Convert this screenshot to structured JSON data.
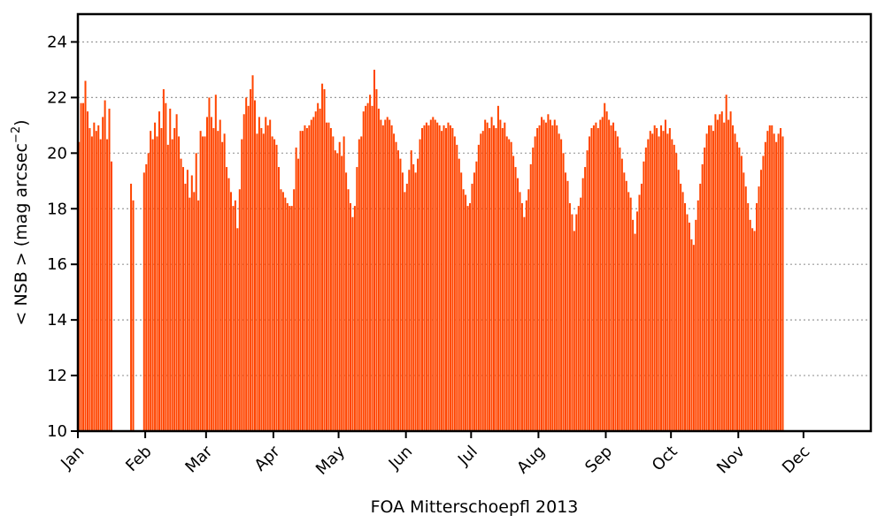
{
  "chart_data": {
    "type": "bar",
    "title": "",
    "xlabel": "FOA Mitterschoepfl 2013",
    "ylabel": "< NSB >  (mag arcsec⁻²)",
    "ylim": [
      10,
      25
    ],
    "xlim": [
      "2013-01-01",
      "2013-12-31"
    ],
    "yticks": [
      10,
      12,
      14,
      16,
      18,
      20,
      22,
      24
    ],
    "xticks": [
      {
        "date": "2013-01-01",
        "label": "Jan"
      },
      {
        "date": "2013-02-01",
        "label": "Feb"
      },
      {
        "date": "2013-03-01",
        "label": "Mar"
      },
      {
        "date": "2013-04-01",
        "label": "Apr"
      },
      {
        "date": "2013-05-01",
        "label": "May"
      },
      {
        "date": "2013-06-01",
        "label": "Jun"
      },
      {
        "date": "2013-07-01",
        "label": "Jul"
      },
      {
        "date": "2013-08-01",
        "label": "Aug"
      },
      {
        "date": "2013-09-01",
        "label": "Sep"
      },
      {
        "date": "2013-10-01",
        "label": "Oct"
      },
      {
        "date": "2013-11-01",
        "label": "Nov"
      },
      {
        "date": "2013-12-01",
        "label": "Dec"
      }
    ],
    "grid": "horizontal dotted",
    "bar_color": "#ff4500",
    "start_date": "2013-01-01",
    "daily_values": [
      20.4,
      21.8,
      21.8,
      22.6,
      21.5,
      20.9,
      20.6,
      21.1,
      20.8,
      21.0,
      20.5,
      21.3,
      21.9,
      20.5,
      21.6,
      19.7,
      null,
      null,
      null,
      null,
      null,
      null,
      null,
      null,
      18.9,
      18.3,
      null,
      null,
      null,
      null,
      19.3,
      19.6,
      20.0,
      20.8,
      20.5,
      21.1,
      20.6,
      21.5,
      20.9,
      22.3,
      21.8,
      20.3,
      21.6,
      20.5,
      20.9,
      21.4,
      20.6,
      19.8,
      19.5,
      18.9,
      19.4,
      18.4,
      19.2,
      18.6,
      20.0,
      18.3,
      20.8,
      20.6,
      20.6,
      21.3,
      22.0,
      21.3,
      20.9,
      22.1,
      20.8,
      21.2,
      20.4,
      20.7,
      19.5,
      19.1,
      18.6,
      18.1,
      18.3,
      17.3,
      18.7,
      20.5,
      21.4,
      22.0,
      21.7,
      22.3,
      22.8,
      21.9,
      20.7,
      21.3,
      20.9,
      20.7,
      21.3,
      21.0,
      21.2,
      20.6,
      20.5,
      20.3,
      19.5,
      18.7,
      18.6,
      18.4,
      18.2,
      18.1,
      18.1,
      18.7,
      20.2,
      19.8,
      20.8,
      20.8,
      21.0,
      20.9,
      21.0,
      21.2,
      21.3,
      21.5,
      21.8,
      21.6,
      22.5,
      22.3,
      21.1,
      21.1,
      20.9,
      20.6,
      20.1,
      20.0,
      20.4,
      19.9,
      20.6,
      19.3,
      18.7,
      18.2,
      17.7,
      18.1,
      19.5,
      20.5,
      20.6,
      21.5,
      21.7,
      21.8,
      22.1,
      21.7,
      23.0,
      22.3,
      21.6,
      21.2,
      21.0,
      21.2,
      21.3,
      21.2,
      21.0,
      20.7,
      20.4,
      20.1,
      19.8,
      19.3,
      18.6,
      18.9,
      19.4,
      20.1,
      19.6,
      19.3,
      19.8,
      20.5,
      20.9,
      21.0,
      21.1,
      21.0,
      21.2,
      21.3,
      21.2,
      21.1,
      21.0,
      20.8,
      21.0,
      20.9,
      21.1,
      21.0,
      20.9,
      20.6,
      20.3,
      19.8,
      19.3,
      18.7,
      18.5,
      18.1,
      18.2,
      18.9,
      19.3,
      19.7,
      20.3,
      20.7,
      20.8,
      21.2,
      21.1,
      20.9,
      21.3,
      21.0,
      20.9,
      21.7,
      21.2,
      20.9,
      21.1,
      20.6,
      20.5,
      20.4,
      19.9,
      19.5,
      19.1,
      18.6,
      18.2,
      17.7,
      18.3,
      18.7,
      19.6,
      20.2,
      20.6,
      20.9,
      21.0,
      21.3,
      21.2,
      21.1,
      21.4,
      21.2,
      21.0,
      21.2,
      21.0,
      20.7,
      20.5,
      20.0,
      19.3,
      19.0,
      18.2,
      17.8,
      17.2,
      17.8,
      18.1,
      18.4,
      19.1,
      19.5,
      20.1,
      20.6,
      20.9,
      21.0,
      21.1,
      20.9,
      21.2,
      21.3,
      21.8,
      21.5,
      21.2,
      21.0,
      21.1,
      20.8,
      20.6,
      20.2,
      19.8,
      19.3,
      19.0,
      18.6,
      18.4,
      17.6,
      17.1,
      17.9,
      18.5,
      18.9,
      19.7,
      20.2,
      20.5,
      20.8,
      20.7,
      21.0,
      20.9,
      20.6,
      21.0,
      20.8,
      21.2,
      20.7,
      20.9,
      20.5,
      20.3,
      20.0,
      19.4,
      18.9,
      18.6,
      18.2,
      17.8,
      17.5,
      16.9,
      16.7,
      17.6,
      18.3,
      18.9,
      19.6,
      20.2,
      20.7,
      21.0,
      21.0,
      20.8,
      21.4,
      21.2,
      21.4,
      21.5,
      21.1,
      22.1,
      21.2,
      21.5,
      21.0,
      20.7,
      20.4,
      20.2,
      19.9,
      19.3,
      18.8,
      18.2,
      17.6,
      17.3,
      17.2,
      18.2,
      18.8,
      19.4,
      19.9,
      20.4,
      20.8,
      21.0,
      21.0,
      20.7,
      20.4,
      20.7,
      20.9,
      20.6
    ]
  }
}
